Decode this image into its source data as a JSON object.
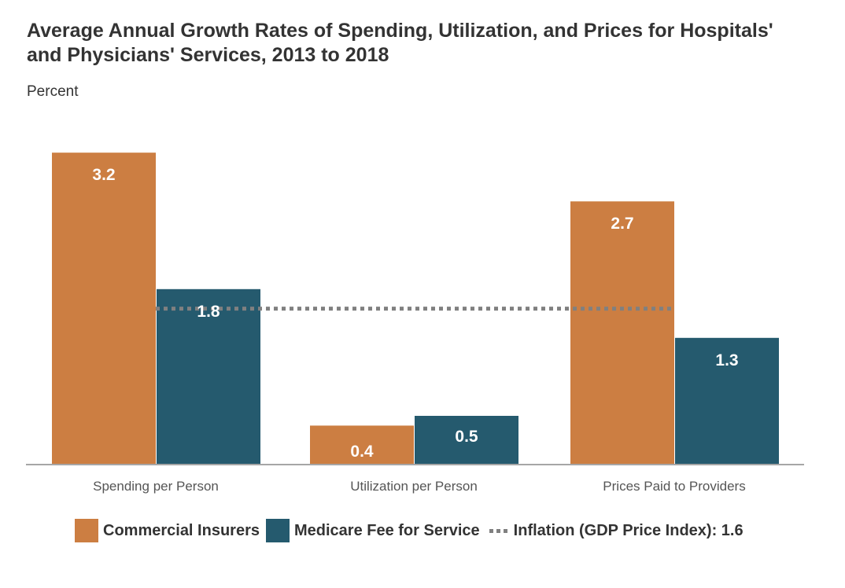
{
  "chart_data": {
    "type": "bar",
    "title": "Average Annual Growth Rates of Spending, Utilization, and Prices for Hospitals' and Physicians' Services, 2013 to 2018",
    "ylabel": "Percent",
    "xlabel": "",
    "categories": [
      "Spending per Person",
      "Utilization per Person",
      "Prices Paid to Providers"
    ],
    "series": [
      {
        "name": "Commercial Insurers",
        "color": "#CC7E42",
        "values": [
          3.2,
          0.4,
          2.7
        ],
        "labels": [
          "3.2",
          "0.4",
          "2.7"
        ]
      },
      {
        "name": "Medicare Fee for Service",
        "color": "#255A6E",
        "values": [
          1.8,
          0.5,
          1.3
        ],
        "labels": [
          "1.8",
          "0.5",
          "1.3"
        ]
      }
    ],
    "reference_line": {
      "name": "Inflation (GDP Price Index): 1.6",
      "value": 1.6,
      "style": "dotted",
      "color": "#808080"
    },
    "ylim": [
      0,
      3.2
    ],
    "grid": false,
    "legend_position": "bottom"
  },
  "legend": {
    "items": [
      {
        "label": "Commercial Insurers",
        "color": "#CC7E42"
      },
      {
        "label": "Medicare Fee for Service",
        "color": "#255A6E"
      },
      {
        "label": "Inflation (GDP Price Index): 1.6"
      }
    ]
  }
}
